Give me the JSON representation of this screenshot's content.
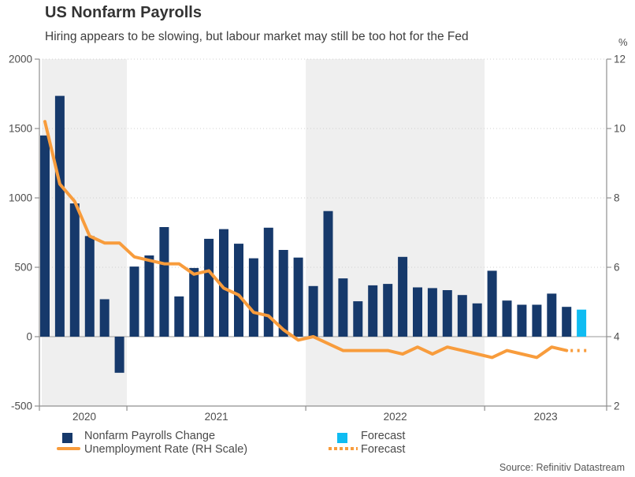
{
  "title": "US Nonfarm Payrolls",
  "subtitle": "Hiring appears to be slowing, but labour market may still be too hot for the Fed",
  "source": "Source: Refinitiv Datastream",
  "legend": {
    "bars": "Nonfarm Payrolls Change",
    "bars_forecast": "Forecast",
    "line": "Unemployment Rate (RH Scale)",
    "line_forecast": "Forecast"
  },
  "colors": {
    "bar": "#16396B",
    "bar_forecast": "#0FBCF2",
    "line": "#F89C3C",
    "band": "#EFEFEF",
    "axis": "#8F8F8F",
    "grid": "#CFCFCF",
    "zero_line": "#ADADAD",
    "text": "#4D4D4D"
  },
  "chart_data": {
    "type": "bar",
    "combo": "bar+line",
    "months": [
      "Jul 2020",
      "Aug 2020",
      "Sep 2020",
      "Oct 2020",
      "Nov 2020",
      "Dec 2020",
      "Jan 2021",
      "Feb 2021",
      "Mar 2021",
      "Apr 2021",
      "May 2021",
      "Jun 2021",
      "Jul 2021",
      "Aug 2021",
      "Sep 2021",
      "Oct 2021",
      "Nov 2021",
      "Dec 2021",
      "Jan 2022",
      "Feb 2022",
      "Mar 2022",
      "Apr 2022",
      "May 2022",
      "Jun 2022",
      "Jul 2022",
      "Aug 2022",
      "Sep 2022",
      "Oct 2022",
      "Nov 2022",
      "Dec 2022",
      "Jan 2023",
      "Feb 2023",
      "Mar 2023",
      "Apr 2023",
      "May 2023",
      "Jun 2023",
      "Jul 2023"
    ],
    "bar_series": {
      "name": "Nonfarm Payrolls Change",
      "axis": "left",
      "unit": "thousands",
      "values": [
        1450,
        1735,
        960,
        725,
        270,
        -260,
        505,
        585,
        790,
        290,
        495,
        705,
        775,
        670,
        565,
        785,
        625,
        570,
        365,
        905,
        420,
        255,
        370,
        380,
        575,
        355,
        350,
        335,
        300,
        240,
        475,
        260,
        230,
        230,
        310,
        215
      ]
    },
    "bar_forecast": {
      "name": "Forecast",
      "month": "Jul 2023",
      "value": 195
    },
    "line_series": {
      "name": "Unemployment Rate (RH Scale)",
      "axis": "right",
      "unit": "%",
      "values": [
        10.2,
        8.4,
        7.9,
        6.9,
        6.7,
        6.7,
        6.3,
        6.2,
        6.1,
        6.1,
        5.8,
        5.9,
        5.4,
        5.2,
        4.7,
        4.6,
        4.2,
        3.9,
        4.0,
        3.8,
        3.6,
        3.6,
        3.6,
        3.6,
        3.5,
        3.7,
        3.5,
        3.7,
        3.6,
        3.5,
        3.4,
        3.6,
        3.5,
        3.4,
        3.7,
        3.6
      ]
    },
    "line_forecast": {
      "name": "Forecast",
      "month": "Jul 2023",
      "value": 3.6
    },
    "left_axis": {
      "ticks": [
        "2000",
        "1500",
        "1000",
        "500",
        "0",
        "-500"
      ],
      "min": -500,
      "max": 2000
    },
    "right_axis": {
      "ticks": [
        "12",
        "10",
        "8",
        "6",
        "4",
        "2"
      ],
      "min": 2,
      "max": 12,
      "unit": "%"
    },
    "x_axis": {
      "year_labels": [
        "2020",
        "2021",
        "2022",
        "2023"
      ]
    },
    "shaded_years": [
      "2020",
      "2022"
    ],
    "grid": "dotted horizontal",
    "legend_position": "bottom"
  }
}
